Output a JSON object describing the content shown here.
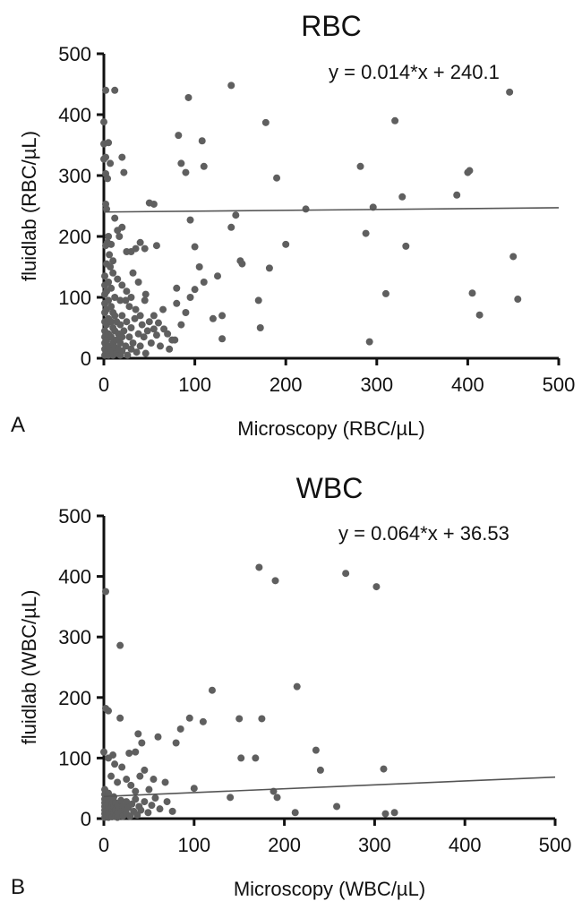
{
  "chart_data": [
    {
      "type": "scatter",
      "panel_label": "A",
      "title": "RBC",
      "xlabel": "Microscopy (RBC/µL)",
      "ylabel": "fluidlab (RBC/µL)",
      "xlim": [
        0,
        500
      ],
      "ylim": [
        0,
        500
      ],
      "xticks": [
        "0",
        "100",
        "200",
        "300",
        "400",
        "500"
      ],
      "yticks": [
        "0",
        "100",
        "200",
        "300",
        "400",
        "500"
      ],
      "equation": "y  = 0.014*x + 240.1",
      "fit": {
        "slope": 0.014,
        "intercept": 240.1
      },
      "grid": false,
      "legend": "none",
      "point_color": "#5f5f5f",
      "line_color": "#555555",
      "points": [
        [
          0,
          388
        ],
        [
          0,
          352
        ],
        [
          2,
          330
        ],
        [
          0,
          327
        ],
        [
          2,
          303
        ],
        [
          5,
          354
        ],
        [
          4,
          295
        ],
        [
          2,
          440
        ],
        [
          12,
          440
        ],
        [
          7,
          320
        ],
        [
          2,
          253
        ],
        [
          3,
          245
        ],
        [
          5,
          200
        ],
        [
          4,
          190
        ],
        [
          2,
          185
        ],
        [
          8,
          187
        ],
        [
          6,
          170
        ],
        [
          3,
          155
        ],
        [
          7,
          150
        ],
        [
          10,
          160
        ],
        [
          12,
          230
        ],
        [
          15,
          210
        ],
        [
          17,
          200
        ],
        [
          20,
          330
        ],
        [
          22,
          305
        ],
        [
          20,
          215
        ],
        [
          25,
          175
        ],
        [
          30,
          175
        ],
        [
          35,
          180
        ],
        [
          40,
          190
        ],
        [
          45,
          180
        ],
        [
          50,
          255
        ],
        [
          55,
          253
        ],
        [
          58,
          185
        ],
        [
          10,
          140
        ],
        [
          15,
          130
        ],
        [
          20,
          120
        ],
        [
          25,
          110
        ],
        [
          12,
          100
        ],
        [
          18,
          95
        ],
        [
          30,
          100
        ],
        [
          28,
          85
        ],
        [
          35,
          80
        ],
        [
          45,
          95
        ],
        [
          40,
          70
        ],
        [
          50,
          60
        ],
        [
          55,
          48
        ],
        [
          60,
          58
        ],
        [
          70,
          40
        ],
        [
          75,
          30
        ],
        [
          65,
          80
        ],
        [
          80,
          90
        ],
        [
          85,
          55
        ],
        [
          90,
          75
        ],
        [
          95,
          100
        ],
        [
          100,
          113
        ],
        [
          105,
          150
        ],
        [
          110,
          125
        ],
        [
          80,
          115
        ],
        [
          82,
          366
        ],
        [
          85,
          320
        ],
        [
          90,
          305
        ],
        [
          93,
          428
        ],
        [
          95,
          227
        ],
        [
          100,
          183
        ],
        [
          108,
          357
        ],
        [
          110,
          315
        ],
        [
          120,
          65
        ],
        [
          125,
          135
        ],
        [
          130,
          70
        ],
        [
          130,
          32
        ],
        [
          140,
          448
        ],
        [
          140,
          215
        ],
        [
          145,
          235
        ],
        [
          150,
          160
        ],
        [
          152,
          155
        ],
        [
          170,
          95
        ],
        [
          172,
          50
        ],
        [
          178,
          387
        ],
        [
          182,
          148
        ],
        [
          190,
          296
        ],
        [
          200,
          187
        ],
        [
          222,
          245
        ],
        [
          282,
          315
        ],
        [
          288,
          205
        ],
        [
          292,
          27
        ],
        [
          296,
          248
        ],
        [
          310,
          106
        ],
        [
          320,
          390
        ],
        [
          328,
          265
        ],
        [
          332,
          184
        ],
        [
          388,
          268
        ],
        [
          400,
          305
        ],
        [
          402,
          308
        ],
        [
          405,
          107
        ],
        [
          413,
          71
        ],
        [
          446,
          437
        ],
        [
          450,
          167
        ],
        [
          455,
          97
        ],
        [
          1,
          5
        ],
        [
          1,
          15
        ],
        [
          1,
          25
        ],
        [
          1,
          35
        ],
        [
          1,
          45
        ],
        [
          1,
          60
        ],
        [
          1,
          75
        ],
        [
          1,
          90
        ],
        [
          1,
          105
        ],
        [
          1,
          120
        ],
        [
          1,
          135
        ],
        [
          3,
          10
        ],
        [
          3,
          30
        ],
        [
          3,
          55
        ],
        [
          3,
          80
        ],
        [
          3,
          110
        ],
        [
          5,
          5
        ],
        [
          5,
          20
        ],
        [
          5,
          40
        ],
        [
          5,
          65
        ],
        [
          5,
          95
        ],
        [
          5,
          125
        ],
        [
          8,
          12
        ],
        [
          8,
          35
        ],
        [
          8,
          60
        ],
        [
          8,
          85
        ],
        [
          8,
          115
        ],
        [
          10,
          5
        ],
        [
          10,
          25
        ],
        [
          10,
          50
        ],
        [
          10,
          75
        ],
        [
          12,
          18
        ],
        [
          12,
          45
        ],
        [
          12,
          70
        ],
        [
          14,
          8
        ],
        [
          14,
          30
        ],
        [
          14,
          60
        ],
        [
          16,
          15
        ],
        [
          16,
          40
        ],
        [
          18,
          5
        ],
        [
          18,
          25
        ],
        [
          18,
          55
        ],
        [
          20,
          12
        ],
        [
          20,
          35
        ],
        [
          20,
          70
        ],
        [
          22,
          45
        ],
        [
          24,
          20
        ],
        [
          25,
          60
        ],
        [
          26,
          5
        ],
        [
          28,
          35
        ],
        [
          30,
          15
        ],
        [
          30,
          50
        ],
        [
          32,
          25
        ],
        [
          34,
          65
        ],
        [
          36,
          10
        ],
        [
          38,
          40
        ],
        [
          40,
          20
        ],
        [
          42,
          55
        ],
        [
          44,
          35
        ],
        [
          46,
          8
        ],
        [
          48,
          45
        ],
        [
          52,
          25
        ],
        [
          55,
          70
        ],
        [
          58,
          38
        ],
        [
          62,
          20
        ],
        [
          66,
          48
        ],
        [
          72,
          15
        ],
        [
          78,
          30
        ],
        [
          24,
          95
        ],
        [
          32,
          140
        ],
        [
          38,
          125
        ],
        [
          46,
          105
        ]
      ]
    },
    {
      "type": "scatter",
      "panel_label": "B",
      "title": "WBC",
      "xlabel": "Microscopy (WBC/µL)",
      "ylabel": "fluidlab (WBC/µL)",
      "xlim": [
        0,
        500
      ],
      "ylim": [
        0,
        500
      ],
      "xticks": [
        "0",
        "100",
        "200",
        "300",
        "400",
        "500"
      ],
      "yticks": [
        "0",
        "100",
        "200",
        "300",
        "400",
        "500"
      ],
      "equation": "y = 0.064*x + 36.53",
      "fit": {
        "slope": 0.064,
        "intercept": 36.53
      },
      "grid": false,
      "legend": "none",
      "point_color": "#5f5f5f",
      "line_color": "#555555",
      "points": [
        [
          2,
          375
        ],
        [
          18,
          286
        ],
        [
          2,
          182
        ],
        [
          5,
          178
        ],
        [
          18,
          166
        ],
        [
          0,
          110
        ],
        [
          5,
          100
        ],
        [
          10,
          105
        ],
        [
          28,
          108
        ],
        [
          35,
          110
        ],
        [
          12,
          90
        ],
        [
          20,
          85
        ],
        [
          8,
          70
        ],
        [
          15,
          60
        ],
        [
          25,
          65
        ],
        [
          30,
          55
        ],
        [
          40,
          70
        ],
        [
          45,
          80
        ],
        [
          35,
          45
        ],
        [
          50,
          48
        ],
        [
          55,
          65
        ],
        [
          60,
          135
        ],
        [
          38,
          140
        ],
        [
          42,
          125
        ],
        [
          68,
          60
        ],
        [
          80,
          125
        ],
        [
          85,
          148
        ],
        [
          95,
          166
        ],
        [
          100,
          50
        ],
        [
          110,
          160
        ],
        [
          120,
          212
        ],
        [
          140,
          35
        ],
        [
          150,
          165
        ],
        [
          152,
          100
        ],
        [
          168,
          100
        ],
        [
          172,
          415
        ],
        [
          175,
          165
        ],
        [
          188,
          45
        ],
        [
          190,
          393
        ],
        [
          192,
          35
        ],
        [
          212,
          10
        ],
        [
          214,
          218
        ],
        [
          235,
          113
        ],
        [
          240,
          80
        ],
        [
          258,
          20
        ],
        [
          268,
          405
        ],
        [
          302,
          383
        ],
        [
          310,
          82
        ],
        [
          312,
          8
        ],
        [
          322,
          10
        ],
        [
          1,
          2
        ],
        [
          1,
          8
        ],
        [
          1,
          14
        ],
        [
          1,
          20
        ],
        [
          1,
          26
        ],
        [
          1,
          32
        ],
        [
          1,
          40
        ],
        [
          1,
          48
        ],
        [
          3,
          4
        ],
        [
          3,
          12
        ],
        [
          3,
          22
        ],
        [
          3,
          34
        ],
        [
          5,
          2
        ],
        [
          5,
          10
        ],
        [
          5,
          18
        ],
        [
          5,
          28
        ],
        [
          5,
          42
        ],
        [
          7,
          6
        ],
        [
          7,
          16
        ],
        [
          7,
          30
        ],
        [
          9,
          3
        ],
        [
          9,
          12
        ],
        [
          9,
          24
        ],
        [
          11,
          8
        ],
        [
          11,
          20
        ],
        [
          11,
          36
        ],
        [
          13,
          4
        ],
        [
          13,
          14
        ],
        [
          13,
          26
        ],
        [
          15,
          2
        ],
        [
          15,
          10
        ],
        [
          15,
          22
        ],
        [
          17,
          6
        ],
        [
          17,
          18
        ],
        [
          19,
          12
        ],
        [
          19,
          30
        ],
        [
          21,
          4
        ],
        [
          21,
          20
        ],
        [
          23,
          14
        ],
        [
          25,
          8
        ],
        [
          25,
          28
        ],
        [
          27,
          18
        ],
        [
          29,
          4
        ],
        [
          31,
          24
        ],
        [
          33,
          12
        ],
        [
          35,
          32
        ],
        [
          37,
          6
        ],
        [
          39,
          20
        ],
        [
          41,
          14
        ],
        [
          45,
          28
        ],
        [
          49,
          10
        ],
        [
          53,
          22
        ],
        [
          57,
          34
        ],
        [
          62,
          16
        ],
        [
          70,
          28
        ],
        [
          76,
          12
        ]
      ]
    }
  ]
}
